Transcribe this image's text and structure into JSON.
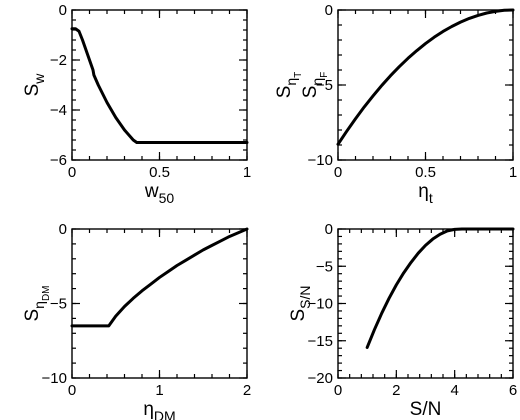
{
  "chart_data": [
    {
      "type": "line",
      "xlabel": "w",
      "xlabel_sub": "50",
      "ylabel": "S",
      "ylabel_sub": "w",
      "xlim": [
        0,
        1
      ],
      "ylim": [
        -6,
        0
      ],
      "xticks": [
        0,
        0.5,
        1
      ],
      "xtick_labels": [
        "0",
        "0.5",
        "1"
      ],
      "yticks": [
        -6,
        -4,
        -2,
        0
      ],
      "ytick_labels": [
        "−6",
        "−4",
        "−2",
        "0"
      ],
      "series": [
        {
          "x": [
            0,
            0.02,
            0.04,
            0.06,
            0.08,
            0.1,
            0.12,
            0.125,
            0.15,
            0.2,
            0.25,
            0.3,
            0.35,
            0.37,
            0.4,
            0.5,
            0.6,
            0.7,
            0.8,
            0.9,
            1.0
          ],
          "values": [
            -0.75,
            -0.75,
            -0.85,
            -1.2,
            -1.6,
            -2.0,
            -2.4,
            -2.6,
            -3.0,
            -3.7,
            -4.3,
            -4.8,
            -5.2,
            -5.3,
            -5.3,
            -5.3,
            -5.3,
            -5.3,
            -5.3,
            -5.3,
            -5.3
          ]
        }
      ]
    },
    {
      "type": "line",
      "xlabel": "η",
      "xlabel_sub": "t",
      "ylabel": "S",
      "ylabel_sub": "η",
      "ylabel_subsub": "T",
      "ylabel2": "S",
      "ylabel2_sub": "η",
      "ylabel2_subsub": "F",
      "xlim": [
        0,
        1
      ],
      "ylim": [
        -10,
        0
      ],
      "xticks": [
        0,
        0.5,
        1
      ],
      "xtick_labels": [
        "0",
        "0.5",
        "1"
      ],
      "yticks": [
        -10,
        -5,
        0
      ],
      "ytick_labels": [
        "−10",
        "−5",
        "0"
      ],
      "series": [
        {
          "x": [
            0,
            0.05,
            0.1,
            0.15,
            0.2,
            0.25,
            0.3,
            0.35,
            0.4,
            0.45,
            0.5,
            0.55,
            0.6,
            0.65,
            0.7,
            0.75,
            0.8,
            0.85,
            0.9,
            0.95,
            1.0
          ],
          "values": [
            -8.95,
            -8.08,
            -7.25,
            -6.46,
            -5.73,
            -5.03,
            -4.38,
            -3.78,
            -3.22,
            -2.71,
            -2.24,
            -1.81,
            -1.43,
            -1.1,
            -0.81,
            -0.56,
            -0.36,
            -0.2,
            -0.09,
            -0.02,
            0
          ]
        }
      ]
    },
    {
      "type": "line",
      "xlabel": "η",
      "xlabel_sub": "DM",
      "ylabel": "S",
      "ylabel_sub": "η",
      "ylabel_subsub": "DM",
      "xlim": [
        0,
        2
      ],
      "ylim": [
        -10,
        0
      ],
      "xticks": [
        0,
        1,
        2
      ],
      "xtick_labels": [
        "0",
        "1",
        "2"
      ],
      "yticks": [
        -10,
        -5,
        0
      ],
      "ytick_labels": [
        "−10",
        "−5",
        "0"
      ],
      "series": [
        {
          "x": [
            0,
            0.2,
            0.42,
            0.5,
            0.6,
            0.7,
            0.8,
            0.9,
            1.0,
            1.1,
            1.2,
            1.3,
            1.4,
            1.5,
            1.6,
            1.7,
            1.8,
            1.9,
            2.0
          ],
          "values": [
            -6.5,
            -6.5,
            -6.5,
            -5.85,
            -5.2,
            -4.65,
            -4.15,
            -3.7,
            -3.25,
            -2.85,
            -2.45,
            -2.1,
            -1.75,
            -1.4,
            -1.1,
            -0.8,
            -0.5,
            -0.25,
            0
          ]
        }
      ]
    },
    {
      "type": "line",
      "xlabel": "S/N",
      "ylabel": "S",
      "ylabel_sub": "S/N",
      "xlim": [
        0,
        6
      ],
      "ylim": [
        -20,
        0
      ],
      "xticks": [
        0,
        2,
        4,
        6
      ],
      "xtick_labels": [
        "0",
        "2",
        "4",
        "6"
      ],
      "yticks": [
        -20,
        -15,
        -10,
        -5,
        0
      ],
      "ytick_labels": [
        "−20",
        "−15",
        "−10",
        "−5",
        "0"
      ],
      "series": [
        {
          "x": [
            1.0,
            1.25,
            1.5,
            1.75,
            2.0,
            2.25,
            2.5,
            2.75,
            3.0,
            3.25,
            3.5,
            3.75,
            4.0,
            4.25,
            4.5,
            4.75,
            5.0,
            5.5,
            6.0
          ],
          "values": [
            -15.9,
            -13.5,
            -11.3,
            -9.3,
            -7.5,
            -5.9,
            -4.5,
            -3.25,
            -2.2,
            -1.35,
            -0.7,
            -0.25,
            -0.05,
            0,
            0,
            0,
            0,
            0,
            0
          ]
        }
      ]
    }
  ]
}
